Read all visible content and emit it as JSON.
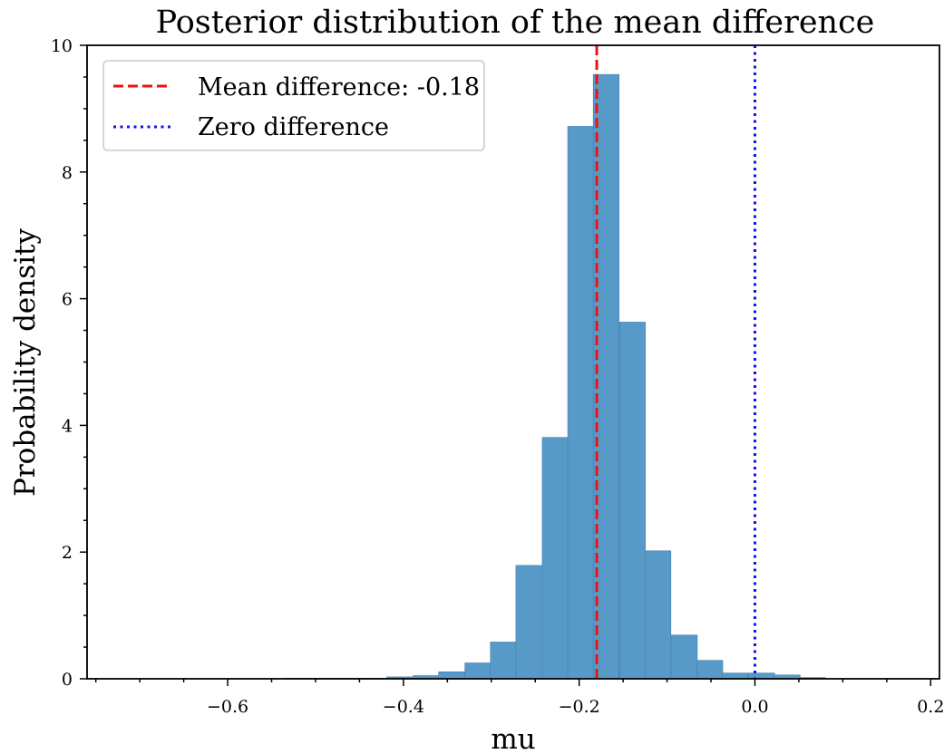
{
  "chart_data": {
    "type": "bar",
    "title": "Posterior distribution of the mean difference",
    "xlabel": "mu",
    "ylabel": "Probability density",
    "xlim": [
      -0.76,
      0.21
    ],
    "ylim": [
      0,
      10
    ],
    "x_ticks": [
      -0.6,
      -0.4,
      -0.2,
      0.0,
      0.2
    ],
    "x_tick_labels": [
      "−0.6",
      "−0.4",
      "−0.2",
      "0.0",
      "0.2"
    ],
    "y_ticks": [
      0,
      2,
      4,
      6,
      8,
      10
    ],
    "y_tick_labels": [
      "0",
      "2",
      "4",
      "6",
      "8",
      "10"
    ],
    "bin_width": 0.0294,
    "bins": [
      {
        "x0": -0.536,
        "value": 0.01
      },
      {
        "x0": -0.507,
        "value": 0.01
      },
      {
        "x0": -0.477,
        "value": 0.01
      },
      {
        "x0": -0.448,
        "value": 0.01
      },
      {
        "x0": -0.419,
        "value": 0.03
      },
      {
        "x0": -0.389,
        "value": 0.05
      },
      {
        "x0": -0.36,
        "value": 0.11
      },
      {
        "x0": -0.33,
        "value": 0.25
      },
      {
        "x0": -0.301,
        "value": 0.58
      },
      {
        "x0": -0.272,
        "value": 1.79
      },
      {
        "x0": -0.242,
        "value": 3.81
      },
      {
        "x0": -0.213,
        "value": 8.72
      },
      {
        "x0": -0.184,
        "value": 9.54
      },
      {
        "x0": -0.154,
        "value": 5.63
      },
      {
        "x0": -0.125,
        "value": 2.02
      },
      {
        "x0": -0.095,
        "value": 0.69
      },
      {
        "x0": -0.066,
        "value": 0.29
      },
      {
        "x0": -0.037,
        "value": 0.09
      },
      {
        "x0": -0.007,
        "value": 0.09
      },
      {
        "x0": 0.022,
        "value": 0.06
      },
      {
        "x0": 0.051,
        "value": 0.02
      }
    ],
    "vlines": [
      {
        "label": "Mean difference: -0.18",
        "x": -0.18,
        "color": "#ee1111",
        "style": "dashed"
      },
      {
        "label": "Zero difference",
        "x": 0.0,
        "color": "#1111ee",
        "style": "dotted"
      }
    ],
    "bar_color": "#5799c7",
    "bar_edge_color": "#3f7fb3",
    "legend_position": "top-left",
    "grid": false
  }
}
